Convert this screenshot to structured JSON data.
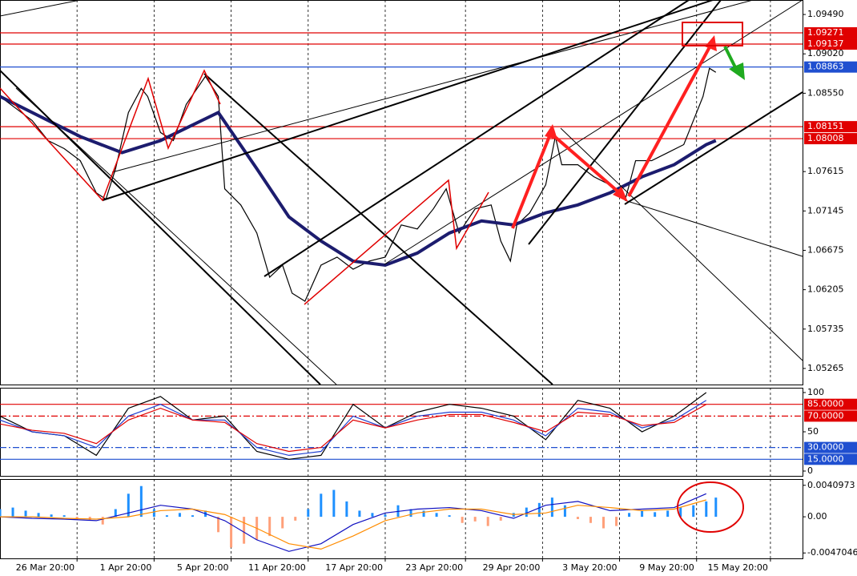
{
  "chart_data": [
    {
      "type": "line",
      "xlim": [
        0,
        250
      ],
      "xticks": [
        {
          "value": 24,
          "label": "26 Mar 20:00"
        },
        {
          "value": 48,
          "label": "1 Apr 20:00"
        },
        {
          "value": 72,
          "label": "5 Apr 20:00"
        },
        {
          "value": 96,
          "label": "11 Apr 20:00"
        },
        {
          "value": 120,
          "label": "17 Apr 20:00"
        },
        {
          "value": 145,
          "label": "23 Apr 20:00"
        },
        {
          "value": 169,
          "label": "29 Apr 20:00"
        },
        {
          "value": 193,
          "label": "3 May 20:00"
        },
        {
          "value": 217,
          "label": "9 May 20:00"
        },
        {
          "value": 240,
          "label": "15 May 20:00"
        }
      ],
      "grid": true,
      "ylim": [
        1.05073,
        1.09663
      ],
      "yticks": [
        {
          "value": 1.0949,
          "label": "1.09490"
        },
        {
          "value": 1.0902,
          "label": "1.09020"
        },
        {
          "value": 1.0855,
          "label": "1.08550"
        },
        1.07615,
        1.07145,
        1.06675,
        1.06205,
        1.05735,
        1.05265
      ],
      "levels": [
        {
          "value": 1.09271,
          "color": "#e00000"
        },
        {
          "value": 1.09137,
          "color": "#e00000"
        },
        {
          "value": 1.08863,
          "color": "#1f4fd0"
        },
        {
          "value": 1.08151,
          "color": "#e00000"
        },
        {
          "value": 1.08008,
          "color": "#e00000"
        }
      ],
      "series": [
        {
          "color": "#000000",
          "x": [
            0,
            5,
            10,
            15,
            20,
            25,
            30,
            33,
            36,
            40,
            44,
            46,
            50,
            54,
            58,
            64,
            68,
            70,
            75,
            80,
            84,
            88,
            91,
            95,
            100,
            105,
            110,
            115,
            120,
            125,
            130,
            135,
            139,
            143,
            148,
            153,
            156,
            159,
            161,
            165,
            170,
            173,
            175,
            180,
            185,
            190,
            195,
            198,
            203,
            208,
            213,
            215,
            219,
            221,
            223
          ],
          "values": [
            1.08512,
            1.08368,
            1.08225,
            1.07985,
            1.07889,
            1.07745,
            1.07361,
            1.07285,
            1.07649,
            1.0832,
            1.08608,
            1.08512,
            1.08081,
            1.07985,
            1.08416,
            1.08752,
            1.08512,
            1.07409,
            1.07217,
            1.06882,
            1.06354,
            1.06498,
            1.06163,
            1.06067,
            1.06498,
            1.06594,
            1.0645,
            1.06546,
            1.06594,
            1.06978,
            1.0693,
            1.0717,
            1.07409,
            1.06882,
            1.0717,
            1.07217,
            1.06786,
            1.06546,
            1.06978,
            1.07122,
            1.07457,
            1.08033,
            1.07697,
            1.07697,
            1.07553,
            1.07457,
            1.07313,
            1.07745,
            1.07745,
            1.07841,
            1.07937,
            1.08129,
            1.08512,
            1.08848,
            1.088
          ]
        },
        {
          "color": "#1c1c6e",
          "x": [
            0,
            25,
            38,
            50,
            68,
            80,
            90,
            100,
            110,
            120,
            130,
            140,
            150,
            160,
            170,
            180,
            190,
            200,
            210,
            220,
            223
          ],
          "values": [
            1.08512,
            1.08033,
            1.07841,
            1.07985,
            1.0832,
            1.07649,
            1.07074,
            1.06786,
            1.06546,
            1.06498,
            1.06642,
            1.06882,
            1.07026,
            1.06978,
            1.07122,
            1.07217,
            1.07361,
            1.07553,
            1.07697,
            1.07937,
            1.07985
          ]
        }
      ]
    },
    {
      "type": "line",
      "ylim": [
        0,
        100
      ],
      "yticks": [
        100,
        50,
        0
      ],
      "levels": [
        {
          "value": 85,
          "label": "85.0000",
          "color": "#e00000",
          "style": "solid"
        },
        {
          "value": 70,
          "label": "70.0000",
          "color": "#e00000",
          "style": "dashdot"
        },
        {
          "value": 30,
          "label": "30.0000",
          "color": "#1f4fd0",
          "style": "dashdot"
        },
        {
          "value": 15,
          "label": "15.0000",
          "color": "#1f4fd0",
          "style": "solid"
        }
      ],
      "series": [
        {
          "color": "#000000",
          "x": [
            0,
            10,
            20,
            30,
            40,
            50,
            60,
            70,
            80,
            90,
            100,
            110,
            120,
            130,
            140,
            150,
            160,
            170,
            180,
            190,
            200,
            210,
            220
          ],
          "values": [
            70,
            50,
            45,
            20,
            80,
            95,
            65,
            70,
            25,
            15,
            20,
            85,
            55,
            75,
            85,
            80,
            70,
            40,
            90,
            80,
            50,
            70,
            100
          ]
        },
        {
          "color": "#1f3fd0",
          "x": [
            0,
            10,
            20,
            30,
            40,
            50,
            60,
            70,
            80,
            90,
            100,
            110,
            120,
            130,
            140,
            150,
            160,
            170,
            180,
            190,
            200,
            210,
            220
          ],
          "values": [
            65,
            50,
            45,
            30,
            70,
            85,
            65,
            65,
            30,
            20,
            25,
            70,
            55,
            70,
            75,
            75,
            65,
            45,
            80,
            75,
            55,
            65,
            90
          ]
        },
        {
          "color": "#e00000",
          "x": [
            0,
            10,
            20,
            30,
            40,
            50,
            60,
            70,
            80,
            90,
            100,
            110,
            120,
            130,
            140,
            150,
            160,
            170,
            180,
            190,
            200,
            210,
            220
          ],
          "values": [
            60,
            52,
            48,
            35,
            65,
            80,
            65,
            62,
            35,
            25,
            30,
            65,
            55,
            65,
            72,
            72,
            62,
            50,
            75,
            72,
            58,
            62,
            85
          ]
        }
      ]
    },
    {
      "type": "combo",
      "ylim": [
        -0.0052,
        0.0047
      ],
      "yticks": [
        0.0040973,
        {
          "value": 0,
          "label": "0.00"
        },
        -0.0047046
      ],
      "bars": {
        "color": "#1e90ff",
        "negative_color": "#ffa07a",
        "x": [
          0,
          4,
          8,
          12,
          16,
          20,
          24,
          28,
          32,
          36,
          40,
          44,
          48,
          52,
          56,
          60,
          64,
          68,
          72,
          76,
          80,
          84,
          88,
          92,
          96,
          100,
          104,
          108,
          112,
          116,
          120,
          124,
          128,
          132,
          136,
          140,
          144,
          148,
          152,
          156,
          160,
          164,
          168,
          172,
          176,
          180,
          184,
          188,
          192,
          196,
          200,
          204,
          208,
          212,
          216,
          220,
          223
        ],
        "values": [
          0.001,
          0.0012,
          0.0008,
          0.0005,
          0.0003,
          0.0002,
          -0.0003,
          -0.0005,
          -0.001,
          0.001,
          0.003,
          0.004,
          0.001,
          0.0002,
          0.0005,
          0.0002,
          0.0008,
          -0.002,
          -0.004,
          -0.0035,
          -0.003,
          -0.0025,
          -0.0015,
          -0.0005,
          0.001,
          0.003,
          0.0035,
          0.002,
          0.0008,
          0.0005,
          0.0003,
          0.0015,
          0.001,
          0.0008,
          0.0005,
          0.0002,
          -0.0008,
          -0.0006,
          -0.0012,
          -0.0005,
          0.0005,
          0.0012,
          0.0018,
          0.0025,
          0.0015,
          -0.0003,
          -0.0008,
          -0.0015,
          -0.0012,
          0.0005,
          0.0008,
          0.0006,
          0.0008,
          0.0012,
          0.0015,
          0.002,
          0.0025
        ]
      },
      "series": [
        {
          "color": "#1010c0",
          "x": [
            0,
            10,
            20,
            30,
            40,
            50,
            60,
            70,
            80,
            90,
            100,
            110,
            120,
            130,
            140,
            150,
            160,
            170,
            180,
            190,
            200,
            210,
            220
          ],
          "values": [
            0,
            -0.0002,
            -0.0003,
            -0.0005,
            0.0005,
            0.0015,
            0.001,
            -0.0005,
            -0.003,
            -0.0045,
            -0.0035,
            -0.001,
            0.0005,
            0.001,
            0.0012,
            0.0008,
            -0.0002,
            0.0015,
            0.002,
            0.0008,
            0.001,
            0.0012,
            0.003
          ]
        },
        {
          "color": "#ff8c00",
          "x": [
            0,
            10,
            20,
            30,
            40,
            50,
            60,
            70,
            80,
            90,
            100,
            110,
            120,
            130,
            140,
            150,
            160,
            170,
            180,
            190,
            200,
            210,
            220
          ],
          "values": [
            0,
            0,
            -0.0002,
            -0.0003,
            0,
            0.0008,
            0.001,
            0.0003,
            -0.0015,
            -0.0035,
            -0.0042,
            -0.0025,
            -0.0005,
            0.0005,
            0.001,
            0.001,
            0.0003,
            0.0005,
            0.0015,
            0.0012,
            0.0008,
            0.001,
            0.0022
          ]
        }
      ]
    }
  ]
}
